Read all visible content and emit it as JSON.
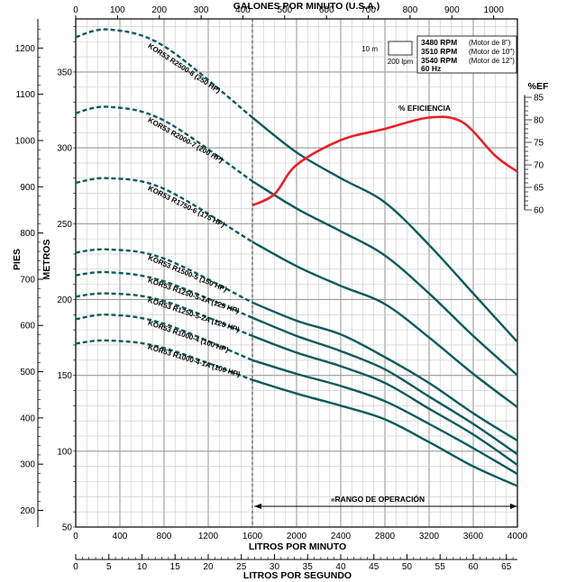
{
  "chart_data": {
    "type": "line",
    "top_axis": {
      "title": "GALONES POR MINUTO (U.S.A.)",
      "ticks": [
        "0",
        "100",
        "200",
        "300",
        "400",
        "500",
        "600",
        "700",
        "800",
        "900",
        "1000"
      ],
      "range": [
        0,
        1056.8
      ]
    },
    "bottom_axis_lpm": {
      "title": "LITROS POR MINUTO",
      "ticks": [
        "0",
        "400",
        "800",
        "1200",
        "1600",
        "2000",
        "2400",
        "2800",
        "3200",
        "3600",
        "4000"
      ],
      "range": [
        0,
        4000
      ]
    },
    "bottom_axis_lps": {
      "title": "LITROS POR SEGUNDO",
      "ticks": [
        "0",
        "5",
        "10",
        "15",
        "20",
        "25",
        "30",
        "35",
        "40",
        "45",
        "50",
        "55",
        "60",
        "65"
      ],
      "range": [
        0,
        66.67
      ]
    },
    "left_axis_pies": {
      "title": "PIES",
      "ticks": [
        "200",
        "300",
        "400",
        "500",
        "600",
        "700",
        "800",
        "900",
        "1000",
        "1100",
        "1200"
      ],
      "range": [
        164,
        1263
      ]
    },
    "left_axis_metros": {
      "title": "METROS",
      "ticks": [
        "50",
        "100",
        "150",
        "200",
        "250",
        "300",
        "350"
      ],
      "range": [
        50,
        385
      ]
    },
    "right_axis_efficiency": {
      "title": "%EF",
      "ticks": [
        "60",
        "65",
        "70",
        "75",
        "80",
        "85"
      ],
      "range": [
        60,
        85
      ]
    },
    "operating_range": {
      "label": "»RANGO DE OPERACIÓN",
      "from_lpm": 1600,
      "to_lpm": 4000
    },
    "legend": {
      "scale_top": "10 m",
      "scale_bottom": "200 lpm",
      "speeds": [
        {
          "rpm": "3480 RPM",
          "note": "(Motor de 8\")"
        },
        {
          "rpm": "3510 RPM",
          "note": "(Motor de 10\")"
        },
        {
          "rpm": "3540 RPM",
          "note": "(Motor de 12\")"
        }
      ],
      "frequency": "60 Hz"
    },
    "efficiency_curve": {
      "label": "% EFICIENCIA",
      "color": "#e8202a",
      "points": [
        [
          1600,
          61
        ],
        [
          1800,
          63.5
        ],
        [
          2000,
          70
        ],
        [
          2400,
          75.5
        ],
        [
          2800,
          78
        ],
        [
          3200,
          80.5
        ],
        [
          3500,
          79.5
        ],
        [
          3800,
          72
        ],
        [
          4000,
          68.5
        ]
      ]
    },
    "series": [
      {
        "name": "KOR53 R2500-8 (250 HP)",
        "color": "#0d5a5a",
        "points": [
          [
            0,
            373
          ],
          [
            300,
            378
          ],
          [
            800,
            367
          ],
          [
            1600,
            320
          ],
          [
            2000,
            297
          ],
          [
            2400,
            280
          ],
          [
            2800,
            264
          ],
          [
            3200,
            236
          ],
          [
            3600,
            204
          ],
          [
            4000,
            172
          ]
        ]
      },
      {
        "name": "KOR53 R2000-7 (200 HP)",
        "color": "#0d5a5a",
        "points": [
          [
            0,
            323
          ],
          [
            300,
            327
          ],
          [
            800,
            318
          ],
          [
            1600,
            278
          ],
          [
            2000,
            260
          ],
          [
            2400,
            245
          ],
          [
            2800,
            229
          ],
          [
            3200,
            204
          ],
          [
            3600,
            176
          ],
          [
            4000,
            150
          ]
        ]
      },
      {
        "name": "KOR53 R1750-6 (175 HP)",
        "color": "#0d5a5a",
        "points": [
          [
            0,
            277
          ],
          [
            300,
            280
          ],
          [
            800,
            273
          ],
          [
            1600,
            238
          ],
          [
            2000,
            222
          ],
          [
            2400,
            209
          ],
          [
            2800,
            197
          ],
          [
            3200,
            175
          ],
          [
            3600,
            151
          ],
          [
            4000,
            129
          ]
        ]
      },
      {
        "name": "KOR53 R1500-5 (150 HP)",
        "color": "#0d5a5a",
        "points": [
          [
            0,
            231
          ],
          [
            300,
            233
          ],
          [
            800,
            227
          ],
          [
            1600,
            198
          ],
          [
            2000,
            186
          ],
          [
            2400,
            177
          ],
          [
            2800,
            162
          ],
          [
            3200,
            145
          ],
          [
            3600,
            125
          ],
          [
            4000,
            107
          ]
        ]
      },
      {
        "name": "KOR53 R1250-5-1A (125 HP)",
        "color": "#0d5a5a",
        "points": [
          [
            0,
            216
          ],
          [
            300,
            218
          ],
          [
            800,
            212
          ],
          [
            1600,
            188
          ],
          [
            2000,
            176
          ],
          [
            2400,
            166
          ],
          [
            2800,
            154
          ],
          [
            3200,
            136
          ],
          [
            3600,
            118
          ],
          [
            4000,
            98
          ]
        ]
      },
      {
        "name": "KOR53 R1250-5-2A (125 HP)",
        "color": "#0d5a5a",
        "points": [
          [
            0,
            202
          ],
          [
            300,
            204
          ],
          [
            800,
            199
          ],
          [
            1600,
            176
          ],
          [
            2000,
            165
          ],
          [
            2400,
            156
          ],
          [
            2800,
            145
          ],
          [
            3200,
            128
          ],
          [
            3600,
            111
          ],
          [
            4000,
            91
          ]
        ]
      },
      {
        "name": "KOR53 R1000-4 (100 HP)",
        "color": "#0d5a5a",
        "points": [
          [
            0,
            187
          ],
          [
            300,
            190
          ],
          [
            800,
            184
          ],
          [
            1600,
            160
          ],
          [
            2000,
            151
          ],
          [
            2400,
            143
          ],
          [
            2800,
            133
          ],
          [
            3200,
            118
          ],
          [
            3600,
            102
          ],
          [
            4000,
            85
          ]
        ]
      },
      {
        "name": "KOR53 R1000-4-1A (100 HP)",
        "color": "#0d5a5a",
        "points": [
          [
            0,
            171
          ],
          [
            300,
            173
          ],
          [
            800,
            168
          ],
          [
            1600,
            147
          ],
          [
            2000,
            138
          ],
          [
            2400,
            130
          ],
          [
            2800,
            121
          ],
          [
            3200,
            106
          ],
          [
            3600,
            90
          ],
          [
            4000,
            77
          ]
        ]
      }
    ]
  }
}
